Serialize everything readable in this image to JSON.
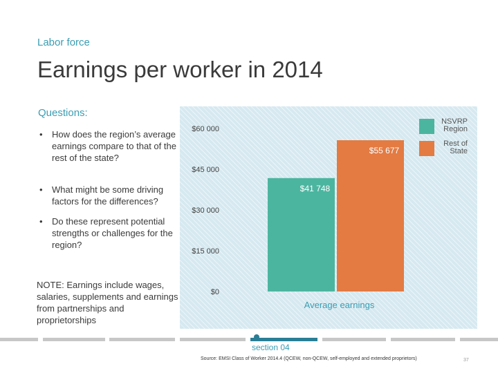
{
  "header": {
    "section": "Labor force",
    "title": "Earnings per worker in 2014"
  },
  "questions": {
    "heading": "Questions:",
    "items": [
      "How does the region’s average earnings compare to that of the rest of the state?",
      "What might be some driving factors for the differences?",
      "Do these represent potential strengths or challenges for the region?"
    ]
  },
  "note": "NOTE: Earnings include wages, salaries, supplements and earnings from partnerships and proprietorships",
  "footer": {
    "section_label": "section 04",
    "source": "Source: EMSI Class of Worker 2014.4 (QCEW, non-QCEW, self-employed and extended proprietors)",
    "page_number": "37"
  },
  "colors": {
    "accent": "#3a9db3",
    "region": "#4cb5a0",
    "rest_of_state": "#e37b43",
    "chart_bg": "#d6e9f0"
  },
  "chart_data": {
    "type": "bar",
    "categories": [
      "Average earnings"
    ],
    "series": [
      {
        "name": "NSVRP Region",
        "values": [
          41748
        ],
        "label": "$41 748",
        "color": "#4cb5a0"
      },
      {
        "name": "Rest of State",
        "values": [
          55677
        ],
        "label": "$55 677",
        "color": "#e37b43"
      }
    ],
    "ylim": [
      0,
      60000
    ],
    "yticks": [
      0,
      15000,
      30000,
      45000,
      60000
    ],
    "ytick_labels": [
      "$0",
      "$15 000",
      "$30 000",
      "$45 000",
      "$60 000"
    ],
    "xlabel": "Average earnings",
    "legend": {
      "position": "top-right",
      "entries": [
        {
          "text": "NSVRP Region",
          "lines": [
            "NSVRP",
            "Region"
          ]
        },
        {
          "text": "Rest of State",
          "lines": [
            "Rest of",
            "State"
          ]
        }
      ]
    },
    "grid": false
  }
}
